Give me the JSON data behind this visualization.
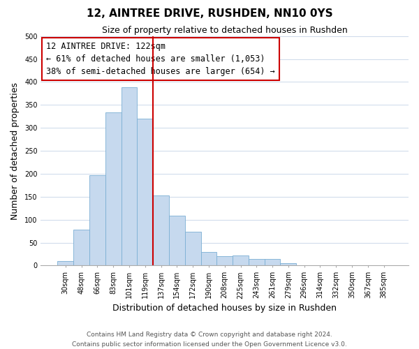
{
  "title": "12, AINTREE DRIVE, RUSHDEN, NN10 0YS",
  "subtitle": "Size of property relative to detached houses in Rushden",
  "xlabel": "Distribution of detached houses by size in Rushden",
  "ylabel": "Number of detached properties",
  "bar_labels": [
    "30sqm",
    "48sqm",
    "66sqm",
    "83sqm",
    "101sqm",
    "119sqm",
    "137sqm",
    "154sqm",
    "172sqm",
    "190sqm",
    "208sqm",
    "225sqm",
    "243sqm",
    "261sqm",
    "279sqm",
    "296sqm",
    "314sqm",
    "332sqm",
    "350sqm",
    "367sqm",
    "385sqm"
  ],
  "bar_values": [
    10,
    78,
    197,
    333,
    388,
    320,
    152,
    108,
    73,
    30,
    20,
    22,
    14,
    15,
    5,
    1,
    0,
    0,
    0,
    0,
    0
  ],
  "bar_color": "#c6d9ee",
  "bar_edge_color": "#7bafd4",
  "vline_color": "#cc0000",
  "vline_x_index": 5,
  "annotation_title": "12 AINTREE DRIVE: 122sqm",
  "annotation_line1": "← 61% of detached houses are smaller (1,053)",
  "annotation_line2": "38% of semi-detached houses are larger (654) →",
  "annotation_box_color": "#ffffff",
  "annotation_box_edge_color": "#cc0000",
  "ylim": [
    0,
    500
  ],
  "yticks": [
    0,
    50,
    100,
    150,
    200,
    250,
    300,
    350,
    400,
    450,
    500
  ],
  "footnote1": "Contains HM Land Registry data © Crown copyright and database right 2024.",
  "footnote2": "Contains public sector information licensed under the Open Government Licence v3.0.",
  "background_color": "#ffffff",
  "grid_color": "#ccd9ea",
  "title_fontsize": 11,
  "subtitle_fontsize": 9,
  "xlabel_fontsize": 9,
  "ylabel_fontsize": 9,
  "tick_fontsize": 7,
  "annotation_fontsize": 8.5,
  "footnote_fontsize": 6.5
}
